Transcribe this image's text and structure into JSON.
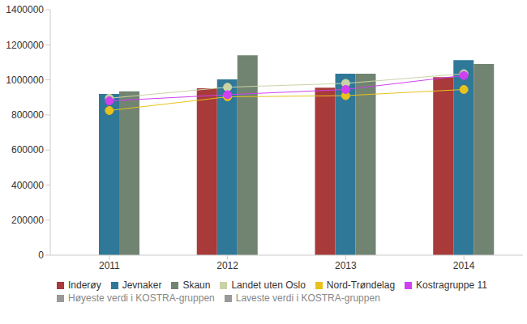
{
  "chart_data": {
    "type": "bar",
    "categories": [
      "2011",
      "2012",
      "2013",
      "2014"
    ],
    "ylim": [
      0,
      1400000
    ],
    "yticks": [
      0,
      200000,
      400000,
      600000,
      800000,
      1000000,
      1200000,
      1400000
    ],
    "grid": false,
    "legend": "bottom",
    "series": [
      {
        "name": "Inderøy",
        "type": "bar",
        "color": "#a83a3a",
        "values": [
          null,
          952000,
          955000,
          1015000
        ]
      },
      {
        "name": "Jevnaker",
        "type": "bar",
        "color": "#2f7898",
        "values": [
          920000,
          1003000,
          1035000,
          1112000
        ]
      },
      {
        "name": "Skaun",
        "type": "bar",
        "color": "#718471",
        "values": [
          935000,
          1140000,
          1035000,
          1090000
        ]
      },
      {
        "name": "Landet uten Oslo",
        "type": "line",
        "marker": "circle",
        "color": "#c9d3a6",
        "values": [
          895000,
          958000,
          980000,
          1035000
        ]
      },
      {
        "name": "Nord-Trøndelag",
        "type": "line",
        "marker": "circle",
        "color": "#e8c21c",
        "values": [
          825000,
          903000,
          910000,
          945000
        ]
      },
      {
        "name": "Kostragruppe 11",
        "type": "line",
        "marker": "circle",
        "color": "#d040f0",
        "values": [
          880000,
          915000,
          945000,
          1025000
        ]
      },
      {
        "name": "Høyeste verdi i KOSTRA-gruppen",
        "type": "line",
        "marker": "circle",
        "color": "#999999",
        "values": [
          null,
          null,
          null,
          null
        ]
      },
      {
        "name": "Laveste verdi i KOSTRA-gruppen",
        "type": "line",
        "marker": "circle",
        "color": "#999999",
        "values": [
          null,
          null,
          null,
          null
        ]
      }
    ]
  }
}
